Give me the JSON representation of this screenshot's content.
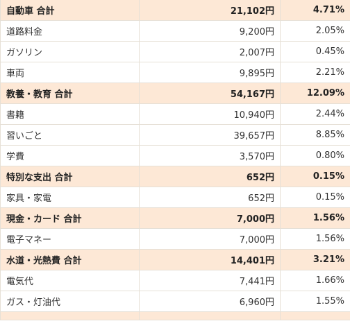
{
  "colors": {
    "total_row_bg": "#fde8d6",
    "item_row_bg": "#ffffff",
    "border": "#e6e0d6"
  },
  "rows": [
    {
      "type": "total",
      "name": "自動車 合計",
      "amount": "21,102円",
      "percent": "4.71%"
    },
    {
      "type": "item",
      "name": "道路料金",
      "amount": "9,200円",
      "percent": "2.05%"
    },
    {
      "type": "item",
      "name": "ガソリン",
      "amount": "2,007円",
      "percent": "0.45%"
    },
    {
      "type": "item",
      "name": "車両",
      "amount": "9,895円",
      "percent": "2.21%"
    },
    {
      "type": "total",
      "name": "教養・教育 合計",
      "amount": "54,167円",
      "percent": "12.09%"
    },
    {
      "type": "item",
      "name": "書籍",
      "amount": "10,940円",
      "percent": "2.44%"
    },
    {
      "type": "item",
      "name": "習いごと",
      "amount": "39,657円",
      "percent": "8.85%"
    },
    {
      "type": "item",
      "name": "学費",
      "amount": "3,570円",
      "percent": "0.80%"
    },
    {
      "type": "total",
      "name": "特別な支出 合計",
      "amount": "652円",
      "percent": "0.15%"
    },
    {
      "type": "item",
      "name": "家具・家電",
      "amount": "652円",
      "percent": "0.15%"
    },
    {
      "type": "total",
      "name": "現金・カード 合計",
      "amount": "7,000円",
      "percent": "1.56%"
    },
    {
      "type": "item",
      "name": "電子マネー",
      "amount": "7,000円",
      "percent": "1.56%"
    },
    {
      "type": "total",
      "name": "水道・光熱費 合計",
      "amount": "14,401円",
      "percent": "3.21%"
    },
    {
      "type": "item",
      "name": "電気代",
      "amount": "7,441円",
      "percent": "1.66%"
    },
    {
      "type": "item",
      "name": "ガス・灯油代",
      "amount": "6,960円",
      "percent": "1.55%"
    }
  ]
}
